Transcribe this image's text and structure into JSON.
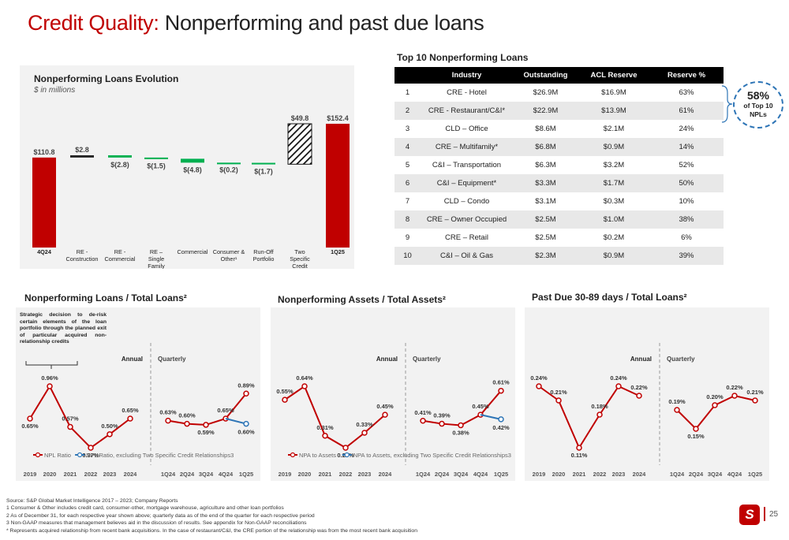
{
  "title": {
    "part1": "Credit Quality:",
    "part2": " Nonperforming and past due loans"
  },
  "waterfall": {
    "title": "Nonperforming Loans Evolution",
    "subtitle": "$ in millions",
    "bars": [
      {
        "label": "4Q24",
        "value": 110.8,
        "display": "$110.8",
        "kind": "total"
      },
      {
        "label": "RE - Construction",
        "value": 2.8,
        "display": "$2.8",
        "kind": "up"
      },
      {
        "label": "RE - Commercial",
        "value": -2.8,
        "display": "$(2.8)",
        "kind": "down"
      },
      {
        "label": "RE – Single Family",
        "value": -1.5,
        "display": "$(1.5)",
        "kind": "down"
      },
      {
        "label": "Commercial",
        "value": -4.8,
        "display": "$(4.8)",
        "kind": "down"
      },
      {
        "label": "Consumer & Other¹",
        "value": -0.2,
        "display": "$(0.2)",
        "kind": "down"
      },
      {
        "label": "Run-Off Portfolio",
        "value": -1.7,
        "display": "$(1.7)",
        "kind": "down"
      },
      {
        "label": "Two Specific Credit Relationships",
        "value": 49.8,
        "display": "$49.8",
        "kind": "hatch"
      },
      {
        "label": "1Q25",
        "value": 152.4,
        "display": "$152.4",
        "kind": "total"
      }
    ],
    "colors": {
      "total": "#c00000",
      "up": "#222222",
      "down": "#00b050"
    }
  },
  "top10": {
    "title": "Top 10 Nonperforming Loans",
    "headers": [
      "",
      "Industry",
      "Outstanding",
      "ACL Reserve",
      "Reserve %"
    ],
    "rows": [
      [
        "1",
        "CRE - Hotel",
        "$26.9M",
        "$16.9M",
        "63%"
      ],
      [
        "2",
        "CRE - Restaurant/C&I*",
        "$22.9M",
        "$13.9M",
        "61%"
      ],
      [
        "3",
        "CLD – Office",
        "$8.6M",
        "$2.1M",
        "24%"
      ],
      [
        "4",
        "CRE – Multifamily*",
        "$6.8M",
        "$0.9M",
        "14%"
      ],
      [
        "5",
        "C&I – Transportation",
        "$6.3M",
        "$3.2M",
        "52%"
      ],
      [
        "6",
        "C&I – Equipment*",
        "$3.3M",
        "$1.7M",
        "50%"
      ],
      [
        "7",
        "CLD – Condo",
        "$3.1M",
        "$0.3M",
        "10%"
      ],
      [
        "8",
        "CRE – Owner Occupied",
        "$2.5M",
        "$1.0M",
        "38%"
      ],
      [
        "9",
        "CRE – Retail",
        "$2.5M",
        "$0.2M",
        "6%"
      ],
      [
        "10",
        "C&I – Oil & Gas",
        "$2.3M",
        "$0.9M",
        "39%"
      ]
    ],
    "callout_pct": "58%",
    "callout_text": "of Top 10 NPLs"
  },
  "chart_data": [
    {
      "type": "line",
      "title": "Nonperforming Loans / Total Loans²",
      "note": "Strategic decision to de-risk certain elements of the loan portfolio through the planned exit of particular acquired non-relationship credits",
      "annual": {
        "x": [
          "2019",
          "2020",
          "2021",
          "2022",
          "2023",
          "2024"
        ],
        "values": [
          0.65,
          0.96,
          0.57,
          0.37,
          0.5,
          0.65
        ],
        "labels": [
          "0.65%",
          "0.96%",
          "0.57%",
          "0.37%",
          "0.50%",
          "0.65%"
        ]
      },
      "quarterly": {
        "x": [
          "1Q24",
          "2Q24",
          "3Q24",
          "4Q24",
          "1Q25"
        ],
        "values": [
          0.63,
          0.6,
          0.59,
          0.65,
          0.89
        ],
        "labels": [
          "0.63%",
          "0.60%",
          "0.59%",
          "0.65%",
          "0.89%"
        ]
      },
      "adjusted": {
        "from": "4Q24",
        "to": "1Q25",
        "values": [
          0.65,
          0.6
        ],
        "label": "0.60%"
      },
      "section_labels": {
        "annual": "Annual",
        "quarterly": "Quarterly"
      },
      "series": [
        {
          "name": "NPL Ratio",
          "color": "#c00000"
        },
        {
          "name": "NPL Ratio, excluding Two Specific Credit Relationships3",
          "color": "#2e75b6"
        }
      ]
    },
    {
      "type": "line",
      "title": "Nonperforming Assets / Total Assets²",
      "annual": {
        "x": [
          "2019",
          "2020",
          "2021",
          "2022",
          "2023",
          "2024"
        ],
        "values": [
          0.55,
          0.64,
          0.31,
          0.23,
          0.33,
          0.45
        ],
        "labels": [
          "0.55%",
          "0.64%",
          "0.31%",
          "0.23%",
          "0.33%",
          "0.45%"
        ]
      },
      "quarterly": {
        "x": [
          "1Q24",
          "2Q24",
          "3Q24",
          "4Q24",
          "1Q25"
        ],
        "values": [
          0.41,
          0.39,
          0.38,
          0.45,
          0.61
        ],
        "labels": [
          "0.41%",
          "0.39%",
          "0.38%",
          "0.45%",
          "0.61%"
        ]
      },
      "adjusted": {
        "from": "4Q24",
        "to": "1Q25",
        "values": [
          0.45,
          0.42
        ],
        "label": "0.42%"
      },
      "section_labels": {
        "annual": "Annual",
        "quarterly": "Quarterly"
      },
      "series": [
        {
          "name": "NPA to Assets",
          "color": "#c00000"
        },
        {
          "name": "NPA to Assets, excluding Two Specific Credit Relationships3",
          "color": "#2e75b6"
        }
      ]
    },
    {
      "type": "line",
      "title": "Past Due 30-89 days / Total Loans²",
      "annual": {
        "x": [
          "2019",
          "2020",
          "2021",
          "2022",
          "2023",
          "2024"
        ],
        "values": [
          0.24,
          0.21,
          0.11,
          0.18,
          0.24,
          0.22
        ],
        "labels": [
          "0.24%",
          "0.21%",
          "0.11%",
          "0.18%",
          "0.24%",
          "0.22%"
        ]
      },
      "quarterly": {
        "x": [
          "1Q24",
          "2Q24",
          "3Q24",
          "4Q24",
          "1Q25"
        ],
        "values": [
          0.19,
          0.15,
          0.2,
          0.22,
          0.21
        ],
        "labels": [
          "0.19%",
          "0.15%",
          "0.20%",
          "0.22%",
          "0.21%"
        ]
      },
      "section_labels": {
        "annual": "Annual",
        "quarterly": "Quarterly"
      },
      "series": [
        {
          "name": "",
          "color": "#c00000"
        }
      ]
    }
  ],
  "footnotes": [
    "Source: S&P Global Market Intelligence 2017 – 2023; Company Reports",
    "1  Consumer & Other includes credit card, consumer-other, mortgage warehouse, agriculture and other loan portfolios",
    "2  As of December 31, for each respective year shown above; quarterly data as of the end of the quarter for each respective period",
    "3  Non-GAAP measures that management believes aid in the discussion of results. See appendix for Non-GAAP reconciliations",
    "*   Represents acquired relationship from recent bank acquisitions. In the case of restaurant/C&I, the CRE portion of the relationship was from the most recent bank acquisition"
  ],
  "page_number": "25",
  "logo_icon": "bank-logo-icon"
}
